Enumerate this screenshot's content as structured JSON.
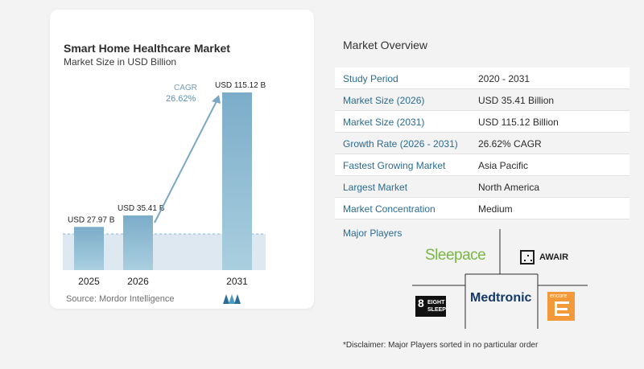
{
  "chart": {
    "title": "Smart Home Healthcare Market",
    "subtitle": "Market Size in USD Billion",
    "source": "Source:  Mordor Intelligence",
    "cagr_label": "CAGR",
    "cagr_value": "26.62%"
  },
  "chart_data": {
    "type": "bar",
    "categories": [
      "2025",
      "2026",
      "2031"
    ],
    "values": [
      27.97,
      35.41,
      115.12
    ],
    "data_labels": [
      "USD 27.97 B",
      "USD 35.41 B",
      "USD 115.12 B"
    ],
    "title": "Smart Home Healthcare Market",
    "subtitle": "Market Size in USD Billion",
    "xlabel": "",
    "ylabel": "",
    "ylim": [
      0,
      115.12
    ],
    "grid": false,
    "annotation": "CAGR 26.62%"
  },
  "overview": {
    "title": "Market Overview",
    "rows": [
      {
        "key": "Study Period",
        "value": "2020 - 2031"
      },
      {
        "key": "Market Size (2026)",
        "value": "USD 35.41 Billion"
      },
      {
        "key": "Market Size (2031)",
        "value": "USD 115.12 Billion"
      },
      {
        "key": "Growth Rate (2026 - 2031)",
        "value": "26.62% CAGR"
      },
      {
        "key": "Fastest Growing Market",
        "value": "Asia Pacific"
      },
      {
        "key": "Largest Market",
        "value": "North America"
      },
      {
        "key": "Market Concentration",
        "value": "Medium"
      }
    ]
  },
  "players": {
    "title": "Major Players",
    "sleepace": "Sleepace",
    "awair": "AWAIR",
    "eight_big": "8",
    "eight_w1": "EIGHT",
    "eight_w2": "SLEEP",
    "medtronic": "Medtronic",
    "encore": "encore"
  },
  "disclaimer": "*Disclaimer: Major Players sorted in no particular order",
  "colors": {
    "bar_top": "#7fb0cd",
    "bar_bottom": "#a8cede",
    "accent": "#2a6c93",
    "sleepace": "#7ab648",
    "encore": "#f29a3a"
  }
}
